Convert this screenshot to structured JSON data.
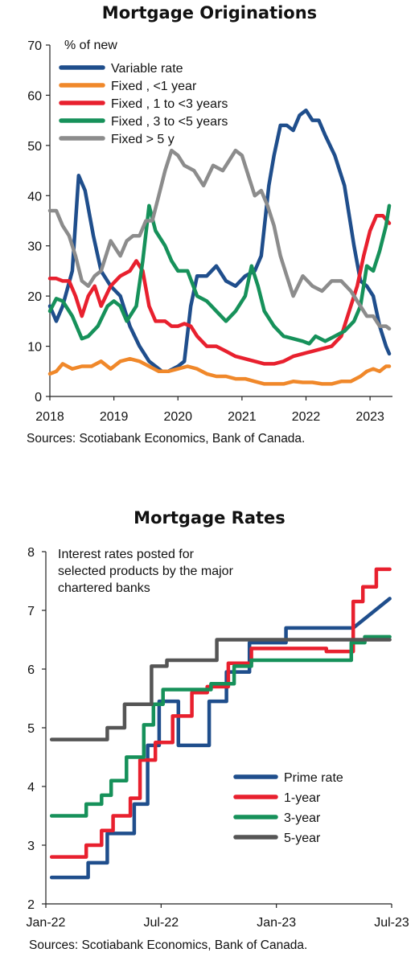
{
  "chart_data": [
    {
      "type": "line",
      "title": "Mortgage Originations",
      "ylabel": "% of new",
      "xlim": [
        2018,
        2023.35
      ],
      "ylim": [
        0,
        70
      ],
      "yticks": [
        0,
        10,
        20,
        30,
        40,
        50,
        60,
        70
      ],
      "xticks": [
        {
          "value": 2018,
          "label": "2018"
        },
        {
          "value": 2019,
          "label": "2019"
        },
        {
          "value": 2020,
          "label": "2020"
        },
        {
          "value": 2021,
          "label": "2021"
        },
        {
          "value": 2022,
          "label": "2022"
        },
        {
          "value": 2023,
          "label": "2023"
        }
      ],
      "legend_position": "top-left",
      "grid": false,
      "source": "Sources: Scotiabank Economics, Bank of Canada.",
      "series": [
        {
          "name": "Variable rate",
          "color": "#1f4e8c",
          "x": [
            2018.0,
            2018.1,
            2018.2,
            2018.35,
            2018.45,
            2018.55,
            2018.68,
            2018.8,
            2018.95,
            2019.1,
            2019.25,
            2019.4,
            2019.55,
            2019.65,
            2019.75,
            2019.85,
            2020.0,
            2020.1,
            2020.2,
            2020.3,
            2020.45,
            2020.6,
            2020.75,
            2020.9,
            2021.05,
            2021.2,
            2021.3,
            2021.42,
            2021.5,
            2021.6,
            2021.7,
            2021.8,
            2021.9,
            2022.0,
            2022.1,
            2022.2,
            2022.3,
            2022.45,
            2022.6,
            2022.75,
            2022.85,
            2022.95,
            2023.05,
            2023.15,
            2023.25,
            2023.3
          ],
          "y": [
            18,
            15,
            18,
            25,
            44,
            41,
            32,
            25,
            22,
            20,
            14,
            10,
            7,
            6,
            5,
            5,
            6,
            7,
            18,
            24,
            24,
            26,
            23,
            22,
            24,
            25,
            28,
            42,
            48,
            54,
            54,
            53,
            56,
            57,
            55,
            55,
            52,
            48,
            42,
            30,
            23,
            22,
            20,
            14,
            10,
            8.5
          ]
        },
        {
          "name": "Fixed , <1 year",
          "color": "#f0882a",
          "x": [
            2018.0,
            2018.1,
            2018.2,
            2018.35,
            2018.5,
            2018.65,
            2018.8,
            2018.95,
            2019.1,
            2019.25,
            2019.4,
            2019.55,
            2019.7,
            2019.85,
            2020.0,
            2020.15,
            2020.3,
            2020.45,
            2020.6,
            2020.75,
            2020.9,
            2021.05,
            2021.2,
            2021.35,
            2021.5,
            2021.65,
            2021.8,
            2021.95,
            2022.1,
            2022.25,
            2022.4,
            2022.55,
            2022.7,
            2022.85,
            2022.95,
            2023.05,
            2023.15,
            2023.25,
            2023.3
          ],
          "y": [
            4.5,
            5,
            6.5,
            5.5,
            6,
            6,
            7,
            5.5,
            7,
            7.5,
            7,
            6,
            5,
            5,
            5.5,
            6,
            5.5,
            4.5,
            4,
            4,
            3.5,
            3.5,
            3,
            2.5,
            2.5,
            2.5,
            3,
            2.8,
            2.8,
            2.5,
            2.5,
            3,
            3,
            4,
            5,
            5.5,
            5,
            6,
            6
          ]
        },
        {
          "name": "Fixed , 1 to <3 years",
          "color": "#e8202e",
          "x": [
            2018.0,
            2018.1,
            2018.2,
            2018.3,
            2018.4,
            2018.5,
            2018.6,
            2018.7,
            2018.8,
            2018.95,
            2019.1,
            2019.25,
            2019.35,
            2019.45,
            2019.55,
            2019.65,
            2019.8,
            2019.9,
            2020.0,
            2020.1,
            2020.2,
            2020.3,
            2020.45,
            2020.6,
            2020.75,
            2020.9,
            2021.05,
            2021.2,
            2021.35,
            2021.5,
            2021.65,
            2021.8,
            2021.95,
            2022.1,
            2022.25,
            2022.4,
            2022.55,
            2022.7,
            2022.8,
            2022.9,
            2023.0,
            2023.1,
            2023.2,
            2023.3
          ],
          "y": [
            23.5,
            23.5,
            23,
            23,
            20,
            16,
            20,
            22,
            18,
            22,
            24,
            25,
            27,
            25,
            18,
            15,
            15,
            14,
            14,
            14.5,
            14,
            12,
            10,
            10,
            9,
            8,
            7.5,
            7,
            6.5,
            6.5,
            7,
            8,
            8.5,
            9,
            9.5,
            10,
            12,
            18,
            22,
            28,
            33,
            36,
            36,
            34.5
          ]
        },
        {
          "name": "Fixed , 3 to <5 years",
          "color": "#16915a",
          "x": [
            2018.0,
            2018.1,
            2018.2,
            2018.35,
            2018.5,
            2018.6,
            2018.75,
            2018.9,
            2019.0,
            2019.1,
            2019.2,
            2019.35,
            2019.45,
            2019.55,
            2019.65,
            2019.8,
            2019.9,
            2020.0,
            2020.15,
            2020.3,
            2020.45,
            2020.6,
            2020.75,
            2020.9,
            2021.05,
            2021.15,
            2021.25,
            2021.35,
            2021.5,
            2021.65,
            2021.8,
            2021.95,
            2022.05,
            2022.15,
            2022.3,
            2022.45,
            2022.6,
            2022.75,
            2022.85,
            2022.95,
            2023.05,
            2023.15,
            2023.25,
            2023.3
          ],
          "y": [
            17,
            19.5,
            19,
            16,
            11.5,
            12,
            14,
            18,
            19,
            18,
            15,
            18,
            27,
            38,
            33,
            30,
            27,
            25,
            25,
            20,
            19,
            17,
            15,
            17,
            20,
            26,
            22,
            17,
            14,
            12,
            11.5,
            11,
            10.5,
            12,
            11,
            12,
            13,
            15,
            18,
            26,
            25,
            29,
            34,
            38
          ]
        },
        {
          "name": "Fixed  > 5 y",
          "color": "#8c8c8c",
          "x": [
            2018.0,
            2018.1,
            2018.2,
            2018.3,
            2018.4,
            2018.5,
            2018.6,
            2018.7,
            2018.8,
            2018.95,
            2019.1,
            2019.2,
            2019.3,
            2019.4,
            2019.5,
            2019.6,
            2019.7,
            2019.8,
            2019.9,
            2020.0,
            2020.1,
            2020.25,
            2020.4,
            2020.55,
            2020.7,
            2020.8,
            2020.9,
            2021.0,
            2021.1,
            2021.2,
            2021.3,
            2021.4,
            2021.5,
            2021.6,
            2021.7,
            2021.8,
            2021.95,
            2022.1,
            2022.25,
            2022.4,
            2022.55,
            2022.7,
            2022.85,
            2022.95,
            2023.05,
            2023.15,
            2023.25,
            2023.3
          ],
          "y": [
            37,
            37,
            34,
            32,
            28,
            23,
            22,
            24,
            25,
            31,
            28,
            31,
            32,
            32,
            35,
            35,
            40,
            45,
            49,
            48,
            46,
            45,
            42,
            46,
            45,
            47,
            49,
            48,
            44,
            40,
            41,
            38,
            34,
            28,
            24,
            20,
            24,
            22,
            21,
            23,
            23,
            21,
            18,
            16,
            16,
            14,
            14,
            13.5
          ]
        }
      ]
    },
    {
      "type": "line",
      "title": "Mortgage Rates",
      "annotation": "Interest rates posted for selected products by the major chartered banks",
      "annotation_lines": [
        "Interest rates posted for",
        "selected products by the major",
        "chartered banks"
      ],
      "xlim": [
        0,
        18
      ],
      "ylim": [
        2,
        8
      ],
      "yticks": [
        2,
        3,
        4,
        5,
        6,
        7,
        8
      ],
      "xticks": [
        {
          "value": 0,
          "label": "Jan-22"
        },
        {
          "value": 6,
          "label": "Jul-22"
        },
        {
          "value": 12,
          "label": "Jan-23"
        },
        {
          "value": 18,
          "label": "Jul-23"
        }
      ],
      "legend_position": "bottom-right",
      "grid": false,
      "source": "Sources: Scotiabank Economics, Bank of Canada.",
      "series": [
        {
          "name": "Prime rate",
          "color": "#1f4e8c",
          "x": [
            0.3,
            2.2,
            2.2,
            3.2,
            3.2,
            4.6,
            4.6,
            5.3,
            5.3,
            5.9,
            5.9,
            6.9,
            6.9,
            8.5,
            8.5,
            9.4,
            9.4,
            10.6,
            10.6,
            11.5,
            11.5,
            12.5,
            12.5,
            13.6,
            13.6,
            16.0,
            16.0,
            17.9
          ],
          "y": [
            2.45,
            2.45,
            2.7,
            2.7,
            3.2,
            3.2,
            3.7,
            3.7,
            4.7,
            4.7,
            5.45,
            5.45,
            4.7,
            4.7,
            5.45,
            5.45,
            5.95,
            5.95,
            6.45,
            6.45,
            6.45,
            6.45,
            6.7,
            6.7,
            6.7,
            6.7,
            6.7,
            7.2
          ]
        },
        {
          "name": "1-year",
          "color": "#e8202e",
          "x": [
            0.3,
            2.1,
            2.1,
            2.9,
            2.9,
            3.5,
            3.5,
            4.4,
            4.4,
            4.9,
            4.9,
            5.7,
            5.7,
            6.6,
            6.6,
            7.6,
            7.6,
            8.4,
            8.4,
            9.5,
            9.5,
            10.7,
            10.7,
            13.3,
            13.3,
            14.6,
            14.6,
            16.0,
            16.0,
            16.5,
            16.5,
            17.2,
            17.2,
            17.9
          ],
          "y": [
            2.8,
            2.8,
            3.0,
            3.0,
            3.25,
            3.25,
            3.5,
            3.5,
            3.8,
            3.8,
            4.45,
            4.45,
            4.75,
            4.75,
            5.2,
            5.2,
            5.6,
            5.6,
            5.7,
            5.7,
            6.1,
            6.1,
            6.35,
            6.35,
            6.35,
            6.35,
            6.3,
            6.3,
            7.15,
            7.15,
            7.4,
            7.4,
            7.7,
            7.7
          ]
        },
        {
          "name": "3-year",
          "color": "#16915a",
          "x": [
            0.3,
            2.1,
            2.1,
            2.9,
            2.9,
            3.4,
            3.4,
            4.2,
            4.2,
            5.1,
            5.1,
            5.6,
            5.6,
            6.1,
            6.1,
            8.6,
            8.6,
            9.8,
            9.8,
            10.7,
            10.7,
            11.6,
            11.6,
            13.3,
            13.3,
            15.9,
            15.9,
            16.6,
            16.6,
            17.9
          ],
          "y": [
            3.5,
            3.5,
            3.7,
            3.7,
            3.85,
            3.85,
            4.1,
            4.1,
            4.5,
            4.5,
            5.05,
            5.05,
            5.4,
            5.4,
            5.65,
            5.65,
            5.75,
            5.75,
            6.05,
            6.05,
            6.15,
            6.15,
            6.15,
            6.15,
            6.15,
            6.15,
            6.45,
            6.45,
            6.55,
            6.55
          ]
        },
        {
          "name": "5-year",
          "color": "#555555",
          "x": [
            0.3,
            3.2,
            3.2,
            4.1,
            4.1,
            5.5,
            5.5,
            6.3,
            6.3,
            8.9,
            8.9,
            11.4,
            11.4,
            13.1,
            13.1,
            17.9
          ],
          "y": [
            4.8,
            4.8,
            5.0,
            5.0,
            5.4,
            5.4,
            6.05,
            6.05,
            6.15,
            6.15,
            6.5,
            6.5,
            6.5,
            6.5,
            6.5,
            6.5
          ]
        }
      ]
    }
  ]
}
